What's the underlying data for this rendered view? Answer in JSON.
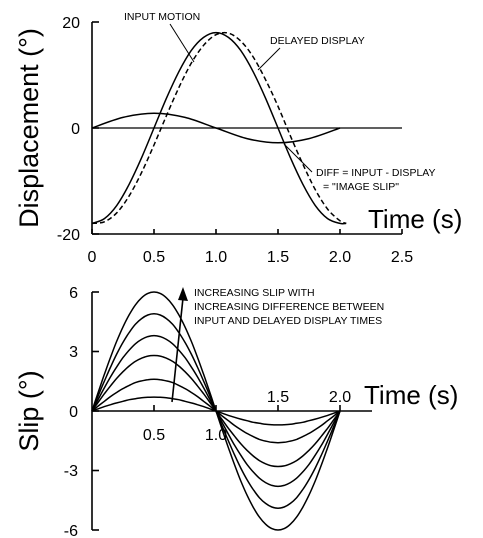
{
  "chart_data": [
    {
      "type": "line",
      "ylabel": "Displacement (°)",
      "xlabel": "Time (s)",
      "xlim": [
        0,
        2.5
      ],
      "ylim": [
        -20,
        20
      ],
      "xticks": [
        "0",
        "0.5",
        "1.0",
        "1.5",
        "2.0",
        "2.5"
      ],
      "yticks": [
        "20",
        "0",
        "-20"
      ],
      "annotations": [
        "INPUT MOTION",
        "DELAYED DISPLAY",
        "DIFF = INPUT - DISPLAY",
        "= \"IMAGE SLIP\""
      ],
      "series": [
        {
          "name": "INPUT MOTION",
          "style": "solid",
          "x": [
            0,
            0.1,
            0.2,
            0.3,
            0.4,
            0.5,
            0.6,
            0.7,
            0.8,
            0.9,
            1.0,
            1.1,
            1.2,
            1.3,
            1.4,
            1.5,
            1.6,
            1.7,
            1.8,
            1.9,
            2.0,
            2.05
          ],
          "y": [
            -18,
            -17.1,
            -14.6,
            -10.6,
            -5.6,
            0,
            5.6,
            10.6,
            14.6,
            17.1,
            18,
            17.1,
            14.6,
            10.6,
            5.6,
            0,
            -5.6,
            -10.6,
            -14.6,
            -17.1,
            -18,
            -18
          ]
        },
        {
          "name": "DELAYED DISPLAY",
          "style": "dashed",
          "x": [
            0,
            0.1,
            0.2,
            0.3,
            0.4,
            0.5,
            0.6,
            0.7,
            0.8,
            0.9,
            1.0,
            1.1,
            1.2,
            1.3,
            1.4,
            1.5,
            1.6,
            1.7,
            1.8,
            1.9,
            2.0,
            2.05
          ],
          "y": [
            -18,
            -17.7,
            -16.0,
            -12.8,
            -8.4,
            -3.2,
            2.3,
            7.6,
            12.2,
            15.6,
            17.6,
            17.9,
            16.4,
            13.4,
            9.1,
            4.1,
            -1.5,
            -6.8,
            -11.6,
            -15.3,
            -17.5,
            -18
          ]
        },
        {
          "name": "DIFF = INPUT - DISPLAY",
          "style": "solid",
          "x": [
            0,
            0.25,
            0.5,
            0.75,
            1.0,
            1.25,
            1.5,
            1.75,
            2.0
          ],
          "y": [
            0,
            2.0,
            2.8,
            2.0,
            0,
            -2.0,
            -2.8,
            -2.0,
            0
          ]
        },
        {
          "name": "zero line",
          "style": "solid",
          "x": [
            0,
            2.5
          ],
          "y": [
            0,
            0
          ]
        }
      ]
    },
    {
      "type": "line",
      "ylabel": "Slip (°)",
      "xlabel": "Time (s)",
      "xlim": [
        0,
        2.5
      ],
      "ylim": [
        -6,
        6
      ],
      "xticks": [
        "0.5",
        "1.0",
        "1.5",
        "2.0"
      ],
      "yticks": [
        "6",
        "3",
        "0",
        "-3",
        "-6"
      ],
      "annotations": [
        "INCREASING SLIP WITH",
        "INCREASING DIFFERENCE BETWEEN",
        "INPUT AND DELAYED DISPLAY TIMES"
      ],
      "x": [
        0,
        0.05,
        0.1,
        0.15,
        0.2,
        0.25,
        0.3,
        0.35,
        0.4,
        0.45,
        0.5,
        0.55,
        0.6,
        0.65,
        0.7,
        0.75,
        0.8,
        0.85,
        0.9,
        0.95,
        1.0,
        1.05,
        1.1,
        1.15,
        1.2,
        1.25,
        1.3,
        1.35,
        1.4,
        1.45,
        1.5,
        1.55,
        1.6,
        1.65,
        1.7,
        1.75,
        1.8,
        1.85,
        1.9,
        1.95,
        2.0
      ],
      "series": [
        {
          "amplitude": 6.0,
          "values": [
            0,
            0.94,
            1.85,
            2.72,
            3.53,
            4.24,
            4.85,
            5.35,
            5.71,
            5.93,
            6.0,
            5.93,
            5.71,
            5.35,
            4.85,
            4.24,
            3.53,
            2.72,
            1.85,
            0.94,
            0,
            -0.94,
            -1.85,
            -2.72,
            -3.53,
            -4.24,
            -4.85,
            -5.35,
            -5.71,
            -5.93,
            -6.0,
            -5.93,
            -5.71,
            -5.35,
            -4.85,
            -4.24,
            -3.53,
            -2.72,
            -1.85,
            -0.94,
            0
          ]
        },
        {
          "amplitude": 4.9,
          "values": [
            0,
            0.77,
            1.51,
            2.22,
            2.88,
            3.46,
            3.96,
            4.37,
            4.66,
            4.84,
            4.9,
            4.84,
            4.66,
            4.37,
            3.96,
            3.46,
            2.88,
            2.22,
            1.51,
            0.77,
            0,
            -0.77,
            -1.51,
            -2.22,
            -2.88,
            -3.46,
            -3.96,
            -4.37,
            -4.66,
            -4.84,
            -4.9,
            -4.84,
            -4.66,
            -4.37,
            -3.96,
            -3.46,
            -2.88,
            -2.22,
            -1.51,
            -0.77,
            0
          ]
        },
        {
          "amplitude": 3.8,
          "values": [
            0,
            0.59,
            1.17,
            1.73,
            2.23,
            2.69,
            3.07,
            3.39,
            3.61,
            3.75,
            3.8,
            3.75,
            3.61,
            3.39,
            3.07,
            2.69,
            2.23,
            1.73,
            1.17,
            0.59,
            0,
            -0.59,
            -1.17,
            -1.73,
            -2.23,
            -2.69,
            -3.07,
            -3.39,
            -3.61,
            -3.75,
            -3.8,
            -3.75,
            -3.61,
            -3.39,
            -3.07,
            -2.69,
            -2.23,
            -1.73,
            -1.17,
            -0.59,
            0
          ]
        },
        {
          "amplitude": 2.8,
          "values": [
            0,
            0.44,
            0.87,
            1.27,
            1.65,
            1.98,
            2.27,
            2.5,
            2.66,
            2.77,
            2.8,
            2.77,
            2.66,
            2.5,
            2.27,
            1.98,
            1.65,
            1.27,
            0.87,
            0.44,
            0,
            -0.44,
            -0.87,
            -1.27,
            -1.65,
            -1.98,
            -2.27,
            -2.5,
            -2.66,
            -2.77,
            -2.8,
            -2.77,
            -2.66,
            -2.5,
            -2.27,
            -1.98,
            -1.65,
            -1.27,
            -0.87,
            -0.44,
            0
          ]
        },
        {
          "amplitude": 1.6,
          "values": [
            0,
            0.25,
            0.49,
            0.73,
            0.94,
            1.13,
            1.29,
            1.43,
            1.52,
            1.58,
            1.6,
            1.58,
            1.52,
            1.43,
            1.29,
            1.13,
            0.94,
            0.73,
            0.49,
            0.25,
            0,
            -0.25,
            -0.49,
            -0.73,
            -0.94,
            -1.13,
            -1.29,
            -1.43,
            -1.52,
            -1.58,
            -1.6,
            -1.58,
            -1.52,
            -1.43,
            -1.29,
            -1.13,
            -0.94,
            -0.73,
            -0.49,
            -0.25,
            0
          ]
        },
        {
          "amplitude": 0.7,
          "values": [
            0,
            0.11,
            0.22,
            0.32,
            0.41,
            0.49,
            0.57,
            0.62,
            0.67,
            0.69,
            0.7,
            0.69,
            0.67,
            0.62,
            0.57,
            0.49,
            0.41,
            0.32,
            0.22,
            0.11,
            0,
            -0.11,
            -0.22,
            -0.32,
            -0.41,
            -0.49,
            -0.57,
            -0.62,
            -0.67,
            -0.69,
            -0.7,
            -0.69,
            -0.67,
            -0.62,
            -0.57,
            -0.49,
            -0.41,
            -0.32,
            -0.22,
            -0.11,
            0
          ]
        }
      ]
    }
  ]
}
